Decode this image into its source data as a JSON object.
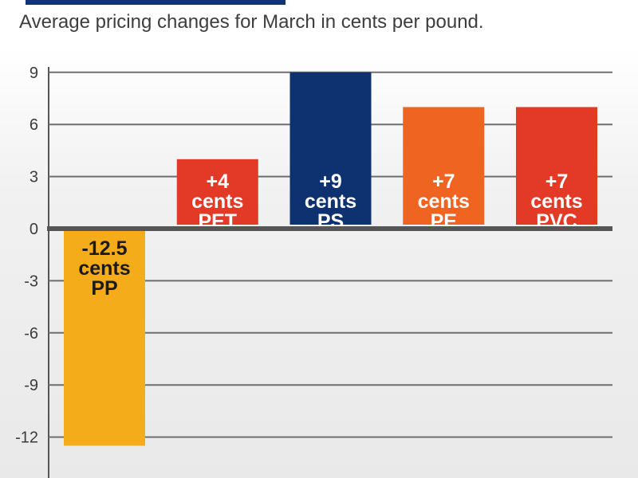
{
  "chart_data": {
    "type": "bar",
    "subtitle": "Average pricing changes for March in cents per pound.",
    "categories": [
      "PP",
      "PET",
      "PS",
      "PE",
      "PVC"
    ],
    "values": [
      -12.5,
      4,
      9,
      7,
      7
    ],
    "bar_labels": [
      [
        "-12.5",
        "cents",
        "PP"
      ],
      [
        "+4",
        "cents",
        "PET"
      ],
      [
        "+9",
        "cents",
        "PS"
      ],
      [
        "+7",
        "cents",
        "PE"
      ],
      [
        "+7",
        "cents",
        "PVC"
      ]
    ],
    "colors": [
      "#f5ac1b",
      "#e23a26",
      "#0e3270",
      "#ef6421",
      "#e23a26"
    ],
    "label_colors": [
      "#1b1b1b",
      "#ffffff",
      "#ffffff",
      "#ffffff",
      "#ffffff"
    ],
    "y_ticks": [
      9,
      6,
      3,
      0,
      -3,
      -6,
      -9,
      -12
    ],
    "y_tick_labels": [
      "9",
      "6",
      "3",
      "0",
      "-3",
      "-6",
      "-9",
      "-12"
    ],
    "ylim": [
      -14,
      9
    ],
    "grid": true,
    "xlabel": "",
    "ylabel": ""
  }
}
